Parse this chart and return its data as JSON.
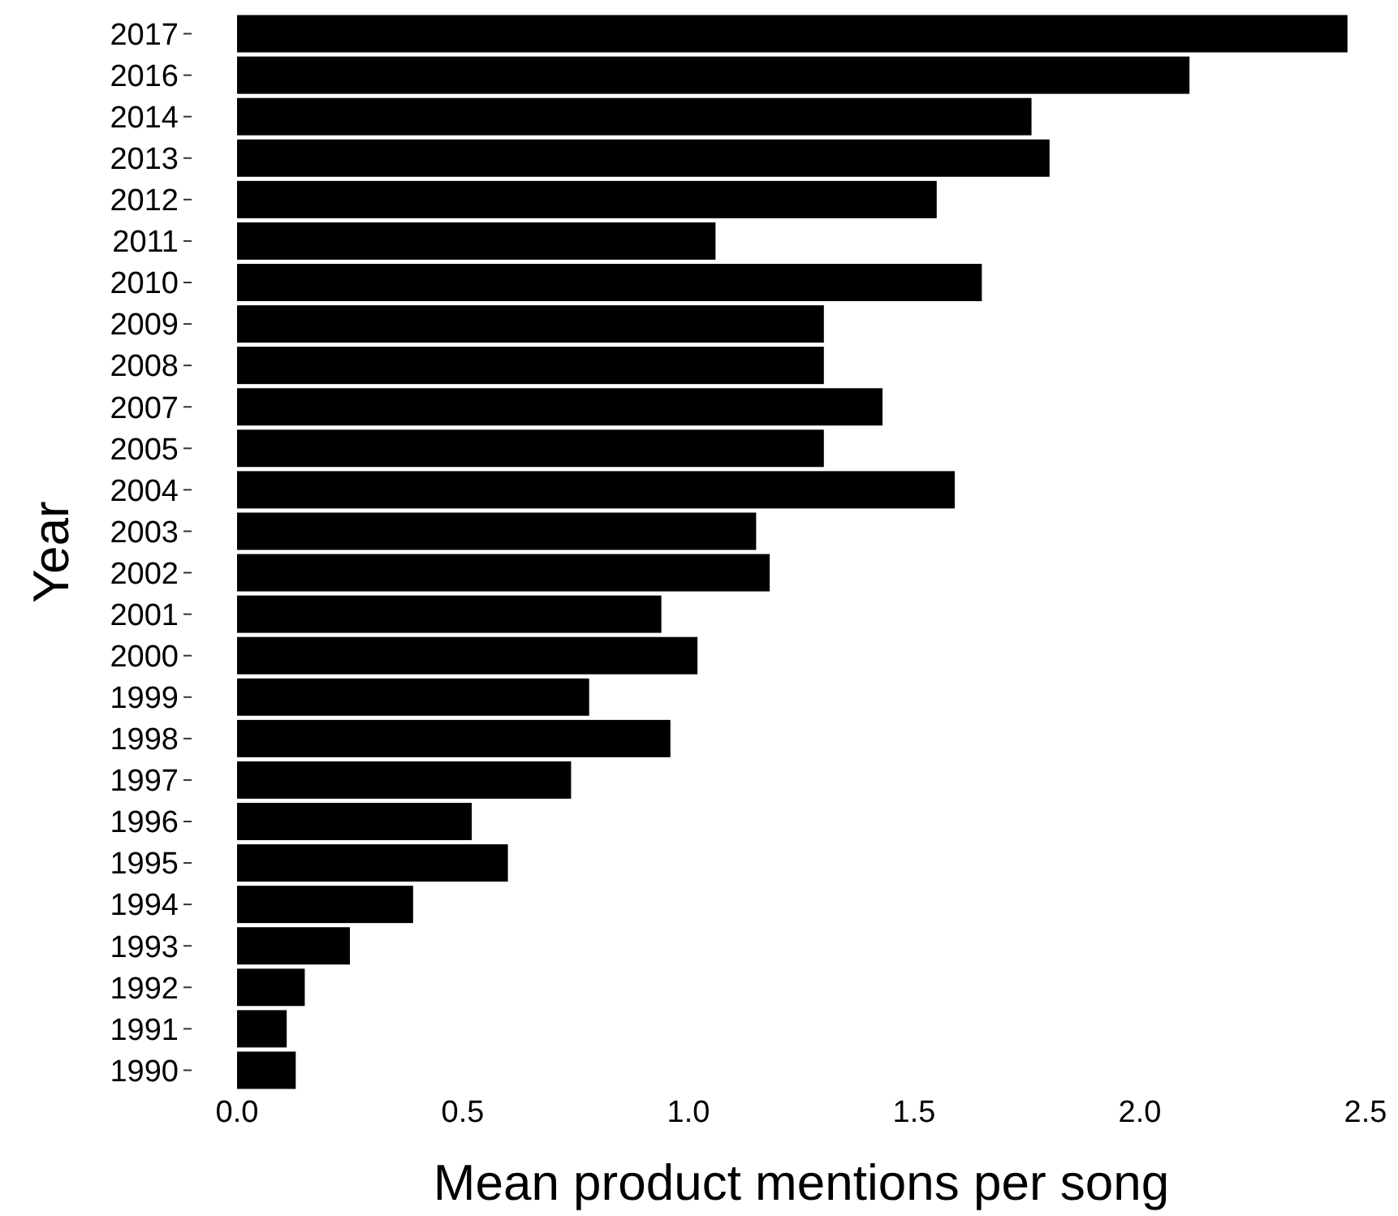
{
  "chart_data": {
    "type": "bar",
    "orientation": "horizontal",
    "xlabel": "Mean product mentions per song",
    "ylabel": "Year",
    "categories": [
      "2017",
      "2016",
      "2014",
      "2013",
      "2012",
      "2011",
      "2010",
      "2009",
      "2008",
      "2007",
      "2005",
      "2004",
      "2003",
      "2002",
      "2001",
      "2000",
      "1999",
      "1998",
      "1997",
      "1996",
      "1995",
      "1994",
      "1993",
      "1992",
      "1991",
      "1990"
    ],
    "values": [
      2.46,
      2.11,
      1.76,
      1.8,
      1.55,
      1.06,
      1.65,
      1.3,
      1.3,
      1.43,
      1.3,
      1.59,
      1.15,
      1.18,
      0.94,
      1.02,
      0.78,
      0.96,
      0.74,
      0.52,
      0.6,
      0.39,
      0.25,
      0.15,
      0.11,
      0.13
    ],
    "color": "#000000",
    "xlim": [
      0,
      2.5
    ],
    "xticks": [
      {
        "value": 0,
        "label": "0.0"
      },
      {
        "value": 0.5,
        "label": "0.5"
      },
      {
        "value": 1,
        "label": "1.0"
      },
      {
        "value": 1.5,
        "label": "1.5"
      },
      {
        "value": 2,
        "label": "2.0"
      },
      {
        "value": 2.5,
        "label": "2.5"
      }
    ],
    "grid": false
  }
}
